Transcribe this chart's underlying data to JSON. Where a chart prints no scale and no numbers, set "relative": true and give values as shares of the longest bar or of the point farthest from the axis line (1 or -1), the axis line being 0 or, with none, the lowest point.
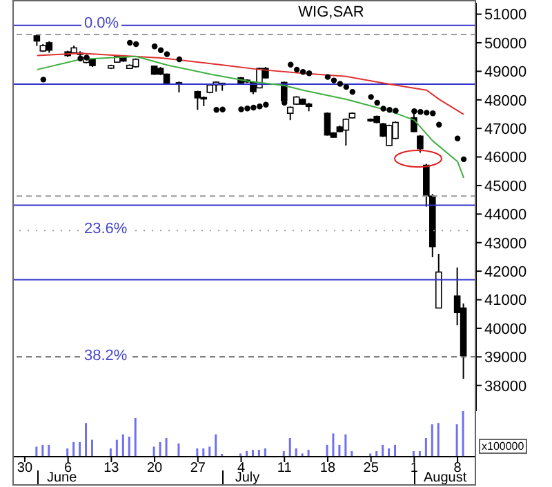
{
  "chart_data": [
    {
      "type": "candlestick",
      "title": "WIG,SAR",
      "tick_labels": "y",
      "x": [
        "--06-01",
        "--06-02",
        "--06-03",
        "--06-06",
        "--06-07",
        "--06-08",
        "--06-09",
        "--06-10",
        "--06-13",
        "--06-14",
        "--06-15",
        "--06-16",
        "--06-17",
        "--06-20",
        "--06-21",
        "--06-22",
        "--06-24",
        "--06-27",
        "--06-28",
        "--06-29",
        "--06-30",
        "--07-01",
        "--07-04",
        "--07-05",
        "--07-06",
        "--07-07",
        "--07-08",
        "--07-11",
        "--07-12",
        "--07-13",
        "--07-14",
        "--07-15",
        "--07-18",
        "--07-19",
        "--07-20",
        "--07-21",
        "--07-22",
        "--07-25",
        "--07-26",
        "--07-27",
        "--07-28",
        "--07-29",
        "--08-01",
        "--08-02",
        "--08-03",
        "--08-04",
        "--08-05",
        "--08-08",
        "--08-09"
      ],
      "ohlc": [
        [
          50240,
          50300,
          49890,
          50060
        ],
        [
          49710,
          49950,
          49680,
          49900
        ],
        [
          50000,
          50050,
          49650,
          49740
        ],
        [
          49680,
          49720,
          49500,
          49550
        ],
        [
          49650,
          49900,
          49600,
          49820
        ],
        [
          49640,
          49700,
          49390,
          49620
        ],
        [
          49310,
          49500,
          49280,
          49470
        ],
        [
          49420,
          49450,
          49150,
          49200
        ],
        [
          49110,
          49230,
          49080,
          49200
        ],
        [
          49320,
          49560,
          49300,
          49530
        ],
        [
          49510,
          49540,
          49330,
          49360
        ],
        [
          49100,
          49240,
          49080,
          49210
        ],
        [
          49160,
          49450,
          49130,
          49420
        ],
        [
          49180,
          49200,
          48870,
          48900
        ],
        [
          49100,
          49150,
          48870,
          48900
        ],
        [
          48900,
          48920,
          48550,
          48580
        ],
        [
          48600,
          48640,
          48260,
          48570
        ],
        [
          48290,
          48320,
          47650,
          48070
        ],
        [
          48080,
          48120,
          47780,
          48060
        ],
        [
          48260,
          48560,
          48230,
          48520
        ],
        [
          48530,
          48640,
          48290,
          48620
        ],
        [
          48560,
          48600,
          48320,
          48580
        ],
        [
          48770,
          48800,
          48560,
          48580
        ],
        [
          48690,
          48720,
          48600,
          48630
        ],
        [
          48610,
          48640,
          48200,
          48290
        ],
        [
          48420,
          49130,
          48400,
          49100
        ],
        [
          49100,
          49150,
          48740,
          48770
        ],
        [
          48610,
          48640,
          47950,
          47970
        ],
        [
          47530,
          47770,
          47290,
          47740
        ],
        [
          47850,
          48130,
          47830,
          48100
        ],
        [
          48020,
          48050,
          47830,
          47850
        ],
        [
          47850,
          47900,
          47600,
          47770
        ],
        [
          47530,
          47560,
          46750,
          46770
        ],
        [
          46840,
          46870,
          46680,
          46690
        ],
        [
          47050,
          47100,
          46870,
          46890
        ],
        [
          46940,
          47350,
          46400,
          47320
        ],
        [
          47370,
          47560,
          47350,
          47530
        ],
        [
          47320,
          47350,
          47230,
          47260
        ],
        [
          47420,
          47450,
          47180,
          47210
        ],
        [
          47160,
          47190,
          46700,
          46730
        ],
        [
          46400,
          47130,
          46380,
          47100
        ],
        [
          46650,
          47240,
          46620,
          47210
        ],
        [
          47370,
          47530,
          46870,
          46890
        ],
        [
          46730,
          46760,
          46150,
          46290
        ],
        [
          45710,
          45760,
          44260,
          44630
        ],
        [
          44630,
          44700,
          42490,
          42860
        ],
        [
          40710,
          42610,
          40700,
          41970
        ],
        [
          41130,
          42130,
          40110,
          40550
        ],
        [
          40710,
          40870,
          38230,
          39040
        ]
      ],
      "series": [
        {
          "type": "line",
          "color": "#e03030",
          "x": [
            "--06-01",
            "--06-08",
            "--06-21",
            "--07-01",
            "--07-07",
            "--07-14",
            "--07-21",
            "--07-28",
            "--08-03",
            "--08-05",
            "--08-09"
          ],
          "values": [
            49550,
            49630,
            49470,
            49220,
            49060,
            48930,
            48820,
            48550,
            48340,
            48020,
            47490
          ]
        },
        {
          "type": "line",
          "color": "#40b040",
          "x": [
            "--06-01",
            "--06-08",
            "--06-17",
            "--06-22",
            "--06-29",
            "--07-05",
            "--07-11",
            "--07-14",
            "--07-21",
            "--07-28",
            "--08-01",
            "--08-04",
            "--08-08",
            "--08-09"
          ],
          "values": [
            49060,
            49420,
            49520,
            49220,
            48900,
            48660,
            48500,
            48340,
            48020,
            47610,
            47290,
            46560,
            45840,
            45270
          ]
        },
        {
          "type": "scatter",
          "color": "#000000",
          "marker": "circle",
          "x": [
            "--06-02",
            "--06-08",
            "--06-09",
            "--06-16",
            "--06-17",
            "--06-20",
            "--06-21",
            "--06-22",
            "--06-24",
            "--06-30",
            "--07-01",
            "--07-04",
            "--07-05",
            "--07-06",
            "--07-07",
            "--07-08",
            "--07-11",
            "--07-12",
            "--07-13",
            "--07-14",
            "--07-15",
            "--07-18",
            "--07-19",
            "--07-20",
            "--07-21",
            "--07-22",
            "--07-25",
            "--07-26",
            "--07-27",
            "--07-28",
            "--07-29",
            "--08-01",
            "--08-02",
            "--08-03",
            "--08-04",
            "--08-05",
            "--08-08",
            "--08-09"
          ],
          "values": [
            48710,
            49450,
            49480,
            50000,
            49950,
            49870,
            49740,
            49600,
            49420,
            47650,
            47660,
            47670,
            47700,
            47730,
            47770,
            47830,
            47900,
            49230,
            49060,
            48980,
            48930,
            48800,
            48680,
            48560,
            48450,
            48280,
            48100,
            47900,
            47690,
            47650,
            47620,
            47600,
            47580,
            47550,
            47530,
            47130,
            46650,
            45920
          ]
        }
      ],
      "xlim": [
        "--05-28",
        "--08-11"
      ],
      "ylim": [
        37100,
        51400
      ],
      "yticks": [
        38000,
        39000,
        40000,
        41000,
        42000,
        43000,
        44000,
        45000,
        46000,
        47000,
        48000,
        49000,
        50000,
        51000
      ],
      "ref_lines": [
        {
          "axis": "y",
          "value": 50610,
          "color": "#3333cc"
        },
        {
          "axis": "y",
          "value": 50290,
          "color": "#999999",
          "line_style": "dashed"
        },
        {
          "axis": "y",
          "value": 48550,
          "color": "#3333cc"
        },
        {
          "axis": "y",
          "value": 44630,
          "color": "#999999",
          "line_style": "dashed"
        },
        {
          "axis": "y",
          "value": 44310,
          "color": "#3333cc"
        },
        {
          "axis": "y",
          "value": 43420,
          "color": "#999999",
          "line_style": "dotted"
        },
        {
          "axis": "y",
          "value": 41700,
          "color": "#3333cc"
        },
        {
          "axis": "y",
          "value": 39000,
          "color": "#666666",
          "line_style": "dashed"
        }
      ],
      "annotations": [
        {
          "text": "0.0%",
          "y": 50610
        },
        {
          "text": "23.6%",
          "y": 43420
        },
        {
          "text": "38.2%",
          "y": 39000
        }
      ]
    },
    {
      "type": "bar",
      "relative": true,
      "tick_labels": "x",
      "ylabel": "x100000",
      "color": "#7070ee",
      "x": [
        "--06-01",
        "--06-02",
        "--06-03",
        "--06-06",
        "--06-07",
        "--06-08",
        "--06-09",
        "--06-10",
        "--06-13",
        "--06-14",
        "--06-15",
        "--06-16",
        "--06-17",
        "--06-20",
        "--06-21",
        "--06-22",
        "--06-24",
        "--06-27",
        "--06-28",
        "--06-29",
        "--06-30",
        "--07-01",
        "--07-04",
        "--07-05",
        "--07-06",
        "--07-07",
        "--07-08",
        "--07-11",
        "--07-12",
        "--07-13",
        "--07-14",
        "--07-15",
        "--07-18",
        "--07-19",
        "--07-20",
        "--07-21",
        "--07-22",
        "--07-25",
        "--07-26",
        "--07-27",
        "--07-28",
        "--07-29",
        "--08-01",
        "--08-02",
        "--08-03",
        "--08-04",
        "--08-05",
        "--08-08",
        "--08-09"
      ],
      "values": [
        0.22,
        0.26,
        0.26,
        0.18,
        0.32,
        0.32,
        0.74,
        0.37,
        0.18,
        0.37,
        0.49,
        0.44,
        0.85,
        0.22,
        0.32,
        0.41,
        0.29,
        0.18,
        0.18,
        0.22,
        0.49,
        0.06,
        0.07,
        0.12,
        0.15,
        0.15,
        0.18,
        0.12,
        0.41,
        0.18,
        0.07,
        0.15,
        0.26,
        0.51,
        0.26,
        0.49,
        0.12,
        0.07,
        0.12,
        0.26,
        0.18,
        0.26,
        0.12,
        0.12,
        0.41,
        0.71,
        0.74,
        0.71,
        1
      ],
      "xlim": [
        "--05-28",
        "--08-11"
      ],
      "xticks": [
        {
          "value": "--05-30",
          "label": "30"
        },
        {
          "value": "--06-06",
          "label": "6"
        },
        {
          "value": "--06-13",
          "label": "13"
        },
        {
          "value": "--06-20",
          "label": "20"
        },
        {
          "value": "--06-27",
          "label": "27"
        },
        {
          "value": "--07-04",
          "label": "4"
        },
        {
          "value": "--07-11",
          "label": "11"
        },
        {
          "value": "--07-18",
          "label": "18"
        },
        {
          "value": "--07-25",
          "label": "25"
        },
        {
          "value": "--08-01",
          "label": "1"
        },
        {
          "value": "--08-08",
          "label": "8"
        }
      ],
      "x2lim": [
        "--05-28",
        "--08-11"
      ],
      "x2ticks": [
        {
          "value": "--06-01",
          "label": null
        },
        {
          "value": "--06-05",
          "label": "June"
        },
        {
          "value": "--07-01",
          "label": null
        },
        {
          "value": "--07-05",
          "label": "July"
        },
        {
          "value": "--08-01",
          "label": null
        },
        {
          "value": "--08-06",
          "label": "August"
        }
      ]
    }
  ]
}
